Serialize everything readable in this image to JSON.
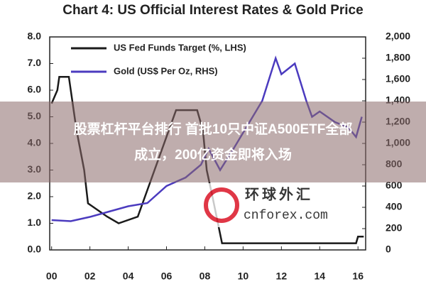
{
  "chart_data": {
    "type": "line",
    "title": "Chart 4: US Official Interest Rates & Gold Price",
    "xlim": [
      1999.9,
      2016.4
    ],
    "xticks": [
      {
        "value": 2000,
        "label": "00"
      },
      {
        "value": 2002,
        "label": "02"
      },
      {
        "value": 2004,
        "label": "04"
      },
      {
        "value": 2006,
        "label": "06"
      },
      {
        "value": 2008,
        "label": "08"
      },
      {
        "value": 2010,
        "label": "10"
      },
      {
        "value": 2012,
        "label": "12"
      },
      {
        "value": 2014,
        "label": "14"
      },
      {
        "value": 2016,
        "label": "16"
      }
    ],
    "ylim": [
      0,
      8
    ],
    "yticks": [
      {
        "value": 0,
        "label": "0.0"
      },
      {
        "value": 1,
        "label": "1.0"
      },
      {
        "value": 2,
        "label": "2.0"
      },
      {
        "value": 3,
        "label": "3.0"
      },
      {
        "value": 4,
        "label": "4.0"
      },
      {
        "value": 5,
        "label": "5.0"
      },
      {
        "value": 6,
        "label": "6.0"
      },
      {
        "value": 7,
        "label": "7.0"
      },
      {
        "value": 8,
        "label": "8.0"
      }
    ],
    "y2lim": [
      0,
      2000
    ],
    "y2ticks": [
      0,
      200,
      400,
      600,
      800,
      {
        "value": 1000,
        "label": "1,000"
      },
      {
        "value": 1200,
        "label": "1,200"
      },
      {
        "value": 1400,
        "label": "1,400"
      },
      {
        "value": 1600,
        "label": "1,600"
      },
      {
        "value": 1800,
        "label": "1,800"
      },
      {
        "value": 2000,
        "label": "2,000"
      }
    ],
    "legend": "upper left",
    "series": [
      {
        "name": "US Fed Funds Target (%, LHS)",
        "color": "#1a1a1a",
        "x": [
          2000.0,
          2000.3,
          2000.4,
          2000.9,
          2001.0,
          2001.3,
          2001.7,
          2001.9,
          2002.9,
          2003.5,
          2004.5,
          2005.0,
          2005.5,
          2006.0,
          2006.5,
          2007.6,
          2007.9,
          2008.1,
          2008.4,
          2008.9,
          2015.9,
          2016.0,
          2016.3
        ],
        "values": [
          5.5,
          6.0,
          6.5,
          6.5,
          6.0,
          4.5,
          3.0,
          1.75,
          1.25,
          1.0,
          1.25,
          2.25,
          3.25,
          4.25,
          5.25,
          5.25,
          4.5,
          3.0,
          2.0,
          0.25,
          0.25,
          0.5,
          0.5
        ]
      },
      {
        "name": "Gold (US$ Per Oz, RHS)",
        "color": "#4b3bbf",
        "axis": "y2",
        "x": [
          2000.0,
          2001.0,
          2002.0,
          2003.0,
          2004.0,
          2005.0,
          2006.0,
          2007.0,
          2007.8,
          2008.2,
          2008.8,
          2009.5,
          2010.0,
          2010.5,
          2011.0,
          2011.7,
          2012.0,
          2012.7,
          2013.3,
          2013.6,
          2014.0,
          2014.8,
          2015.5,
          2015.9,
          2016.2
        ],
        "values": [
          280,
          270,
          310,
          360,
          410,
          440,
          600,
          680,
          800,
          950,
          750,
          950,
          1100,
          1250,
          1400,
          1800,
          1650,
          1750,
          1400,
          1250,
          1300,
          1200,
          1150,
          1060,
          1250
        ]
      }
    ]
  },
  "banner": {
    "line1": "股票杠杆平台排行 首批10只中证A500ETF全部",
    "line2": "成立，200亿资金即将入场"
  },
  "watermark": {
    "name": "环球外汇",
    "site": "cnforex.com"
  }
}
